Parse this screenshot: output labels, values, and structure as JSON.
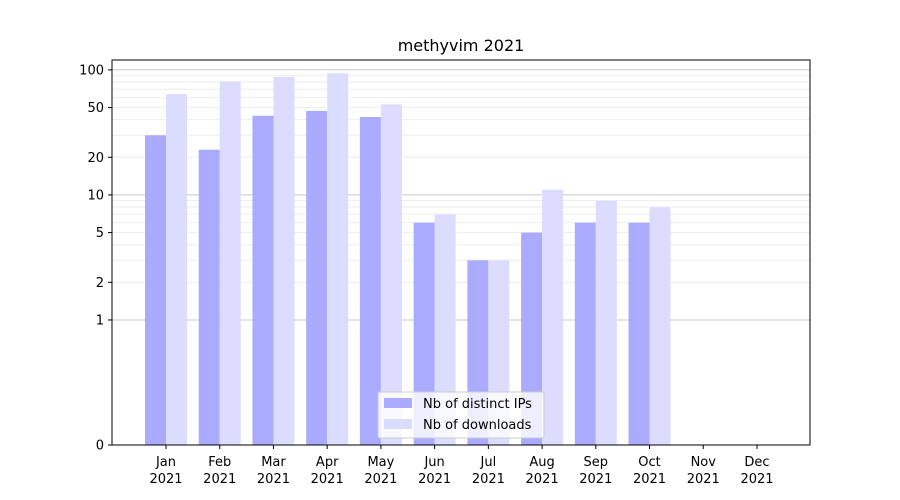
{
  "chart_data": {
    "type": "bar",
    "title": "methyvim 2021",
    "xlabel": "",
    "ylabel": "",
    "yscale": "symlog",
    "ylim": [
      0,
      120
    ],
    "yticks": [
      0,
      1,
      2,
      5,
      10,
      20,
      50,
      100
    ],
    "grid": "y-minor-and-major",
    "legend_position": "bottom-center",
    "categories": [
      {
        "month": "Jan",
        "year": "2021"
      },
      {
        "month": "Feb",
        "year": "2021"
      },
      {
        "month": "Mar",
        "year": "2021"
      },
      {
        "month": "Apr",
        "year": "2021"
      },
      {
        "month": "May",
        "year": "2021"
      },
      {
        "month": "Jun",
        "year": "2021"
      },
      {
        "month": "Jul",
        "year": "2021"
      },
      {
        "month": "Aug",
        "year": "2021"
      },
      {
        "month": "Sep",
        "year": "2021"
      },
      {
        "month": "Oct",
        "year": "2021"
      },
      {
        "month": "Nov",
        "year": "2021"
      },
      {
        "month": "Dec",
        "year": "2021"
      }
    ],
    "series": [
      {
        "name": "Nb of distinct IPs",
        "color": "#aaaaff",
        "values": [
          30,
          23,
          43,
          47,
          42,
          6,
          3,
          5,
          6,
          6,
          0,
          0
        ]
      },
      {
        "name": "Nb of downloads",
        "color": "#dcdcff",
        "values": [
          64,
          81,
          88,
          94,
          53,
          7,
          3,
          11,
          9,
          8,
          0,
          0
        ]
      }
    ]
  }
}
